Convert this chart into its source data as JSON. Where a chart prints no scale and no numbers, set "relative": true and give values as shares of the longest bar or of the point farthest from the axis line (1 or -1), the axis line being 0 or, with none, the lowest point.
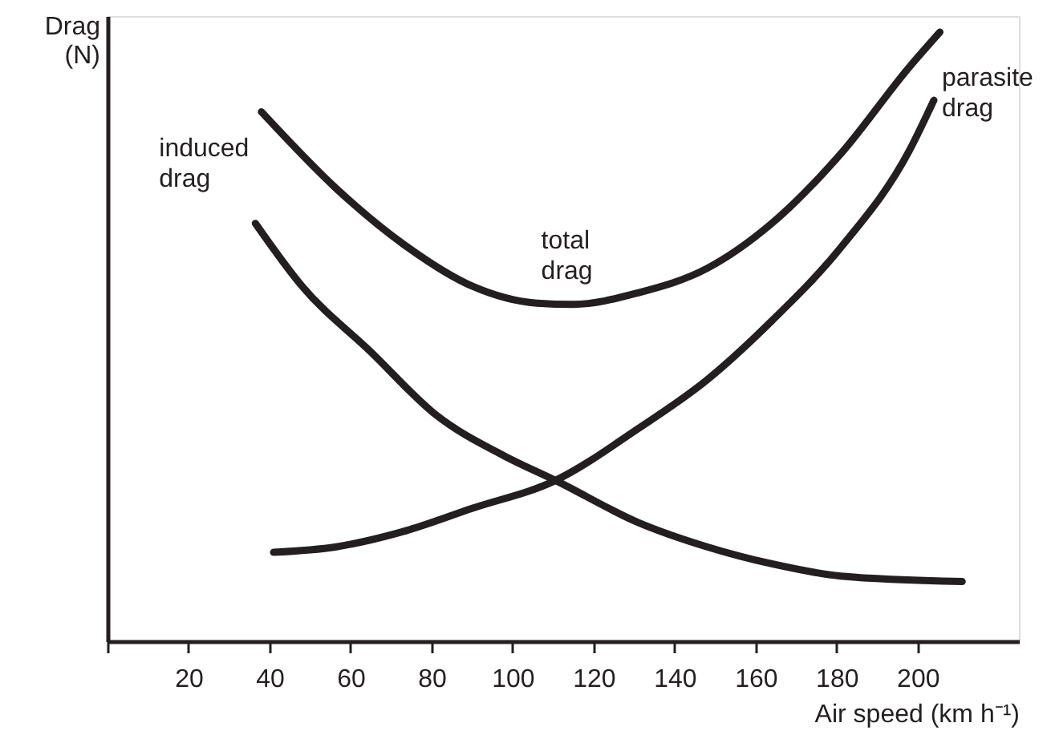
{
  "chart_data": {
    "type": "line",
    "relative": true,
    "xlabel": "Air speed (km h⁻¹)",
    "ylabel": "Drag (N)",
    "xlim": [
      0,
      225
    ],
    "xticks": [
      {
        "value": 0,
        "label": null
      },
      20,
      40,
      60,
      80,
      100,
      120,
      140,
      160,
      180,
      200
    ],
    "grid": false,
    "marker": "none",
    "line_style": "solid",
    "series": [
      {
        "name": "induced drag",
        "color": "#231f20",
        "x": [
          36.5,
          48,
          65,
          81,
          98,
          110.6,
          131,
          148,
          164,
          181,
          211
        ],
        "values": [
          0.686,
          0.583,
          0.475,
          0.372,
          0.304,
          0.264,
          0.195,
          0.155,
          0.127,
          0.107,
          0.098
        ]
      },
      {
        "name": "total drag",
        "color": "#231f20",
        "x": [
          38,
          56.5,
          73,
          90,
          106,
          115,
          131,
          148,
          164,
          181,
          198,
          205.5
        ],
        "values": [
          0.869,
          0.743,
          0.652,
          0.583,
          0.555,
          0.553,
          0.572,
          0.612,
          0.686,
          0.8,
          0.943,
          1.0
        ]
      },
      {
        "name": "parasite drag",
        "color": "#231f20",
        "x": [
          41,
          56.5,
          73,
          90,
          110.6,
          131,
          148,
          164,
          181,
          198,
          204
        ],
        "values": [
          0.146,
          0.155,
          0.18,
          0.218,
          0.264,
          0.349,
          0.429,
          0.526,
          0.646,
          0.806,
          0.888
        ]
      }
    ]
  }
}
